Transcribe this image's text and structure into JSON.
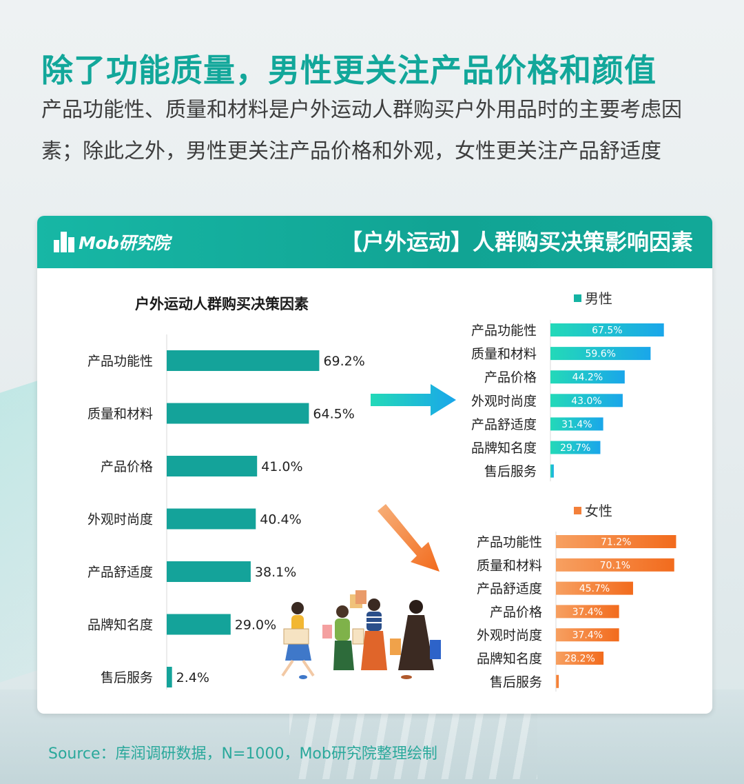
{
  "page": {
    "headline": "除了功能质量，男性更关注产品价格和颜值",
    "subtitle": "产品功能性、质量和材料是户外运动人群购买户外用品时的主要考虑因素；除此之外，男性更关注产品价格和外观，女性更关注产品舒适度",
    "banner_logo": "Mob研究院",
    "banner_title": "【户外运动】人群购买决策影响因素",
    "source": "Source：库润调研数据，N=1000，Mob研究院整理绘制"
  },
  "colors": {
    "teal": "#14a39a",
    "headline": "#12a79a",
    "male_gradient": [
      "#23d9b8",
      "#1aa6ea"
    ],
    "female_gradient": [
      "#f7a061",
      "#f26b1d"
    ]
  },
  "chart_data": [
    {
      "type": "bar",
      "orientation": "horizontal",
      "title": "户外运动人群购买决策因素",
      "categories": [
        "产品功能性",
        "质量和材料",
        "产品价格",
        "外观时尚度",
        "产品舒适度",
        "品牌知名度",
        "售后服务"
      ],
      "values": [
        69.2,
        64.5,
        41.0,
        40.4,
        38.1,
        29.0,
        2.4
      ],
      "labels": [
        "69.2%",
        "64.5%",
        "41.0%",
        "40.4%",
        "38.1%",
        "29.0%",
        "2.4%"
      ],
      "unit": "%"
    },
    {
      "type": "bar",
      "orientation": "horizontal",
      "legend": "男性",
      "categories": [
        "产品功能性",
        "质量和材料",
        "产品价格",
        "外观时尚度",
        "产品舒适度",
        "品牌知名度",
        "售后服务"
      ],
      "values": [
        67.5,
        59.6,
        44.2,
        43.0,
        31.4,
        29.7,
        2.0
      ],
      "labels": [
        "67.5%",
        "59.6%",
        "44.2%",
        "43.0%",
        "31.4%",
        "29.7%",
        ""
      ],
      "unit": "%"
    },
    {
      "type": "bar",
      "orientation": "horizontal",
      "legend": "女性",
      "categories": [
        "产品功能性",
        "质量和材料",
        "产品舒适度",
        "产品价格",
        "外观时尚度",
        "品牌知名度",
        "售后服务"
      ],
      "values": [
        71.2,
        70.1,
        45.7,
        37.4,
        37.4,
        28.2,
        1.5
      ],
      "labels": [
        "71.2%",
        "70.1%",
        "45.7%",
        "37.4%",
        "37.4%",
        "28.2%",
        ""
      ],
      "unit": "%"
    }
  ]
}
